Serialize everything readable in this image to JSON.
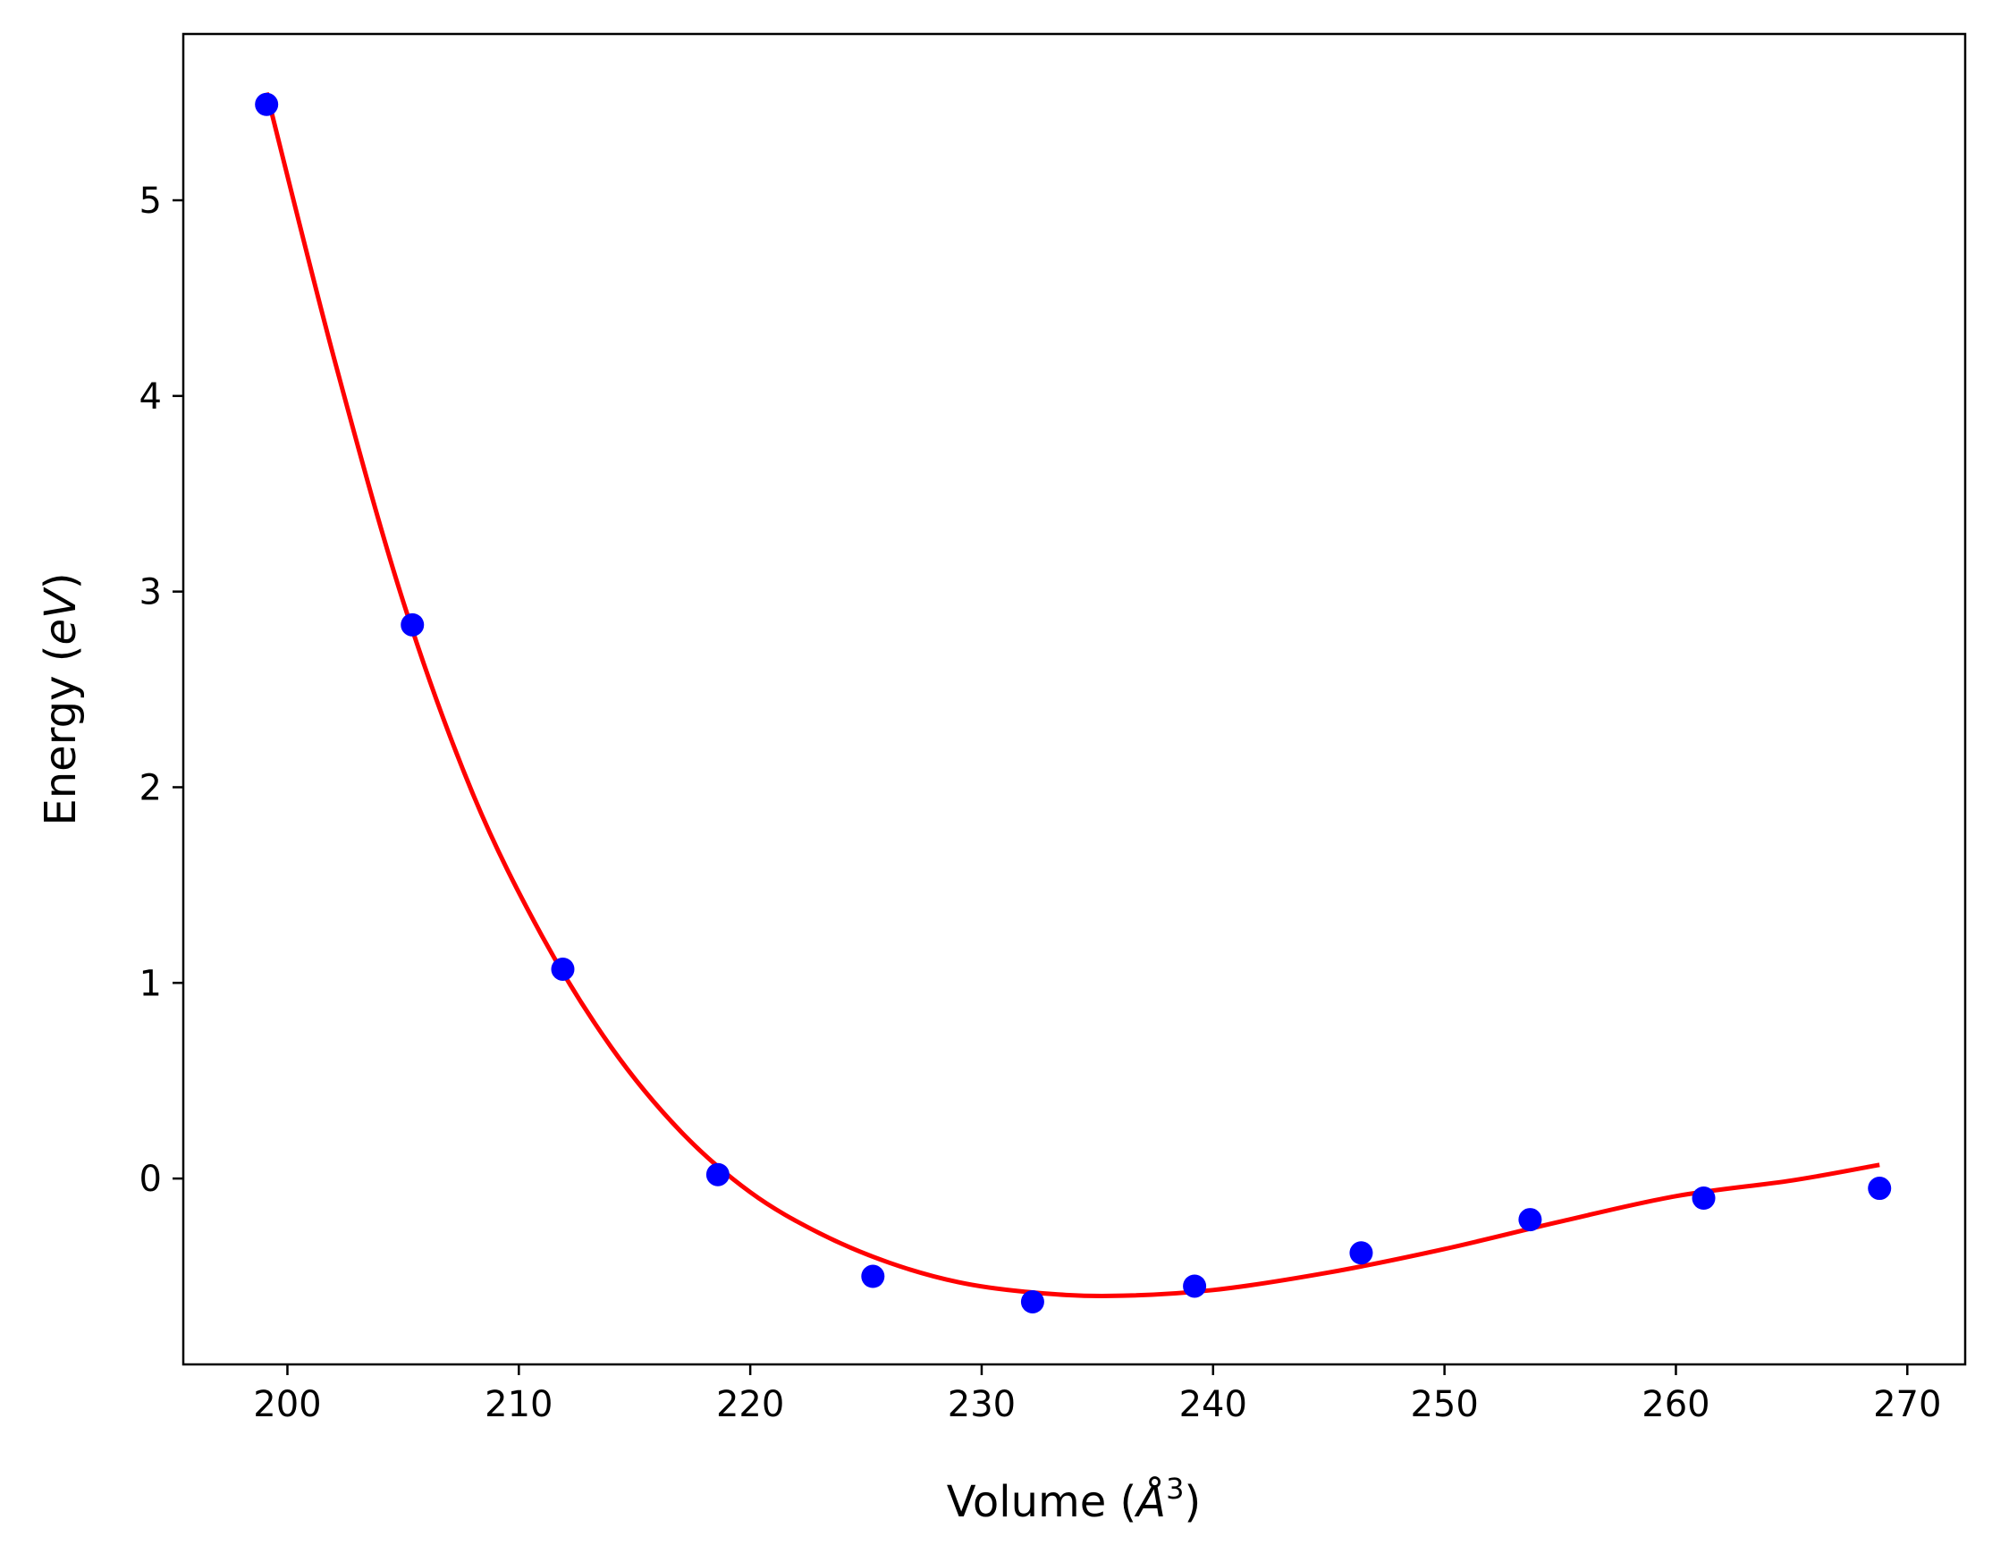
{
  "chart_data": {
    "type": "scatter",
    "xlabel": {
      "prefix": "Volume (",
      "symbol": "Å",
      "superscript": "3",
      "suffix": ")"
    },
    "ylabel": {
      "prefix": "Energy (",
      "italic": "eV",
      "suffix": ")"
    },
    "xlim": [
      195.5,
      272.5
    ],
    "ylim": [
      -0.95,
      5.85
    ],
    "xticks": [
      200,
      210,
      220,
      230,
      240,
      250,
      260,
      270
    ],
    "yticks": [
      0,
      1,
      2,
      3,
      4,
      5
    ],
    "grid": false,
    "series": [
      {
        "kind": "points",
        "color": "#0000ff",
        "x": [
          199.1,
          205.4,
          211.9,
          218.6,
          225.3,
          232.2,
          239.2,
          246.4,
          253.7,
          261.2,
          268.8
        ],
        "y": [
          5.49,
          2.83,
          1.07,
          0.02,
          -0.5,
          -0.63,
          -0.55,
          -0.38,
          -0.21,
          -0.1,
          -0.05
        ]
      },
      {
        "kind": "fit",
        "color": "#ff0000",
        "x": [
          199.1,
          202,
          205,
          208,
          211,
          214,
          217,
          220,
          223,
          226,
          229,
          232,
          235.5,
          240,
          245,
          250,
          255,
          260,
          265,
          268.8
        ],
        "y": [
          5.55,
          4.2,
          2.95,
          1.97,
          1.24,
          0.67,
          0.24,
          -0.07,
          -0.28,
          -0.43,
          -0.53,
          -0.58,
          -0.6,
          -0.57,
          -0.48,
          -0.36,
          -0.22,
          -0.09,
          -0.01,
          0.07
        ]
      }
    ]
  }
}
